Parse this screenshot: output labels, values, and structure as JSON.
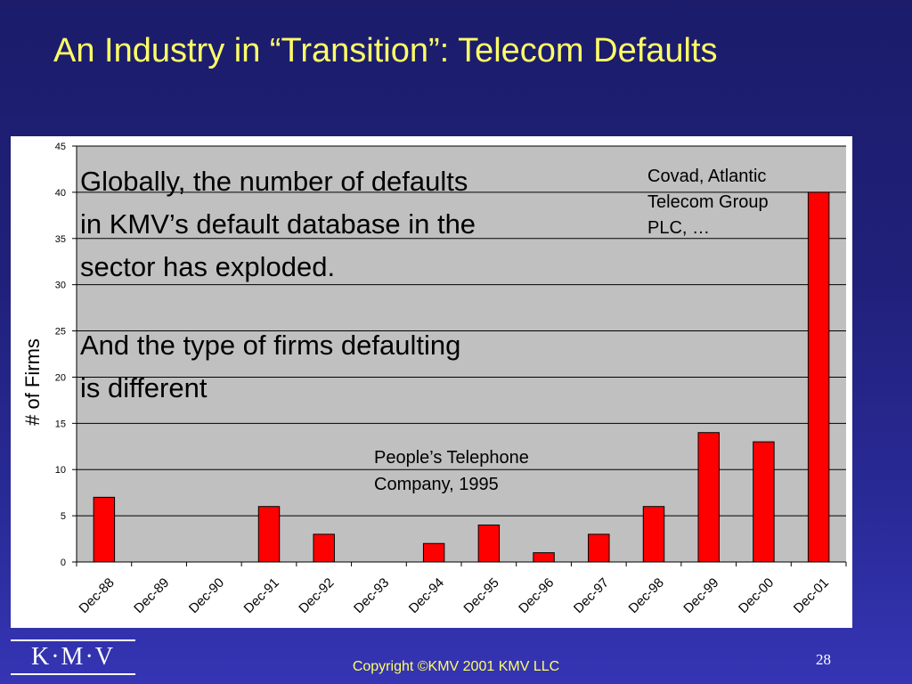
{
  "slide": {
    "title": "An Industry in “Transition”:  Telecom Defaults",
    "copyright": "Copyright ©KMV 2001 KMV LLC",
    "page_number": "28",
    "logo_text": "K·M·V"
  },
  "annotations": {
    "main_lines": [
      "Globally, the number of defaults",
      "in KMV’s default database in the",
      "sector has exploded.",
      "And the type of firms defaulting",
      "is different"
    ],
    "covad_lines": [
      "Covad, Atlantic",
      "Telecom Group",
      "PLC, …"
    ],
    "people_lines": [
      "People’s Telephone",
      "Company, 1995"
    ]
  },
  "colors": {
    "background": "#20207a",
    "title": "#ffff66",
    "plot_area": "#c0c0c0",
    "bar": "#ff0000"
  },
  "chart_data": {
    "type": "bar",
    "categories": [
      "Dec-88",
      "Dec-89",
      "Dec-90",
      "Dec-91",
      "Dec-92",
      "Dec-93",
      "Dec-94",
      "Dec-95",
      "Dec-96",
      "Dec-97",
      "Dec-98",
      "Dec-99",
      "Dec-00",
      "Dec-01"
    ],
    "values": [
      7,
      0,
      0,
      6,
      3,
      0,
      2,
      4,
      1,
      3,
      6,
      14,
      13,
      40
    ],
    "ylabel": "# of Firms",
    "xlabel": "",
    "ylim": [
      0,
      45
    ],
    "yticks": [
      0,
      5,
      10,
      15,
      20,
      25,
      30,
      35,
      40,
      45
    ],
    "grid": true,
    "legend": "none"
  }
}
